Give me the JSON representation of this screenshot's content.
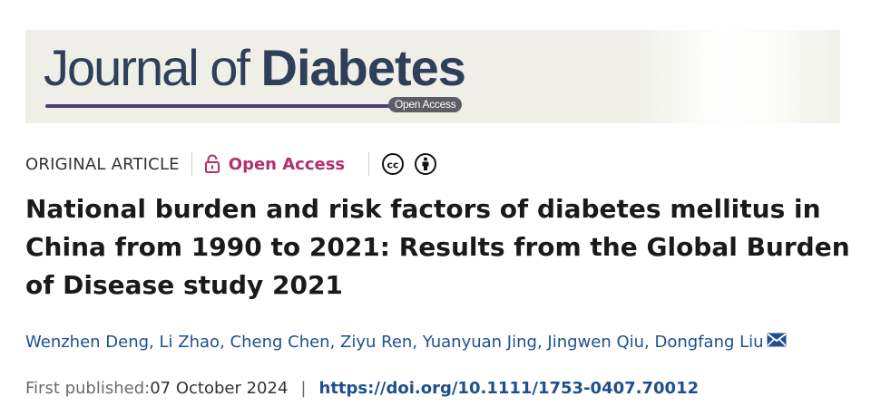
{
  "banner": {
    "journal_light": "Journal of ",
    "journal_bold": "Diabetes",
    "open_access_badge": "Open Access"
  },
  "meta": {
    "article_type": "ORIGINAL ARTICLE",
    "open_access": "Open Access",
    "icons": [
      "lock-icon",
      "creative-commons-icon",
      "attribution-icon"
    ],
    "colors": {
      "open_access": "#b0316d",
      "link": "#1f4f8f"
    }
  },
  "title": "National burden and risk factors of diabetes mellitus in China from 1990 to 2021: Results from the Global Burden of Disease study 2021",
  "authors": [
    "Wenzhen Deng",
    "Li Zhao",
    "Cheng Chen",
    "Ziyu Ren",
    "Yuanyuan Jing",
    "Jingwen Qiu",
    "Dongfang Liu"
  ],
  "publication": {
    "label": "First published: ",
    "date": "07 October 2024",
    "separator": "|",
    "doi": "https://doi.org/10.1111/1753-0407.70012"
  }
}
